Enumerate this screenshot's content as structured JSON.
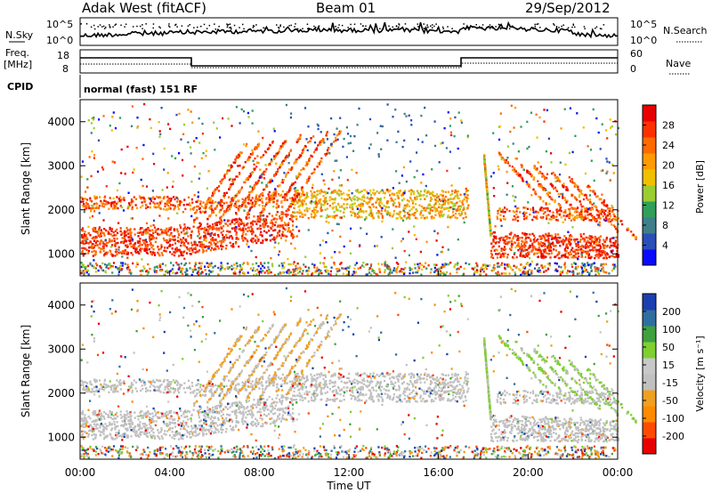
{
  "header": {
    "station": "Adak West (fitACF)",
    "beam": "Beam 01",
    "date": "29/Sep/2012"
  },
  "noise_panel": {
    "left_label": "N.Sky",
    "right_label": "N.Search",
    "ticks": [
      "10^5",
      "10^0"
    ]
  },
  "freq_panel": {
    "left_label": "Freq.",
    "left_unit": "[MHz]",
    "left_ticks": [
      "18",
      "8"
    ],
    "right_label": "Nave",
    "right_ticks": [
      "60",
      "0"
    ]
  },
  "cpid_panel": {
    "label": "CPID",
    "value": "normal (fast) 151 RF"
  },
  "chart_data": [
    {
      "type": "heatmap",
      "title": "",
      "ylabel": "Slant Range [km]",
      "xlabel": "",
      "ylim": [
        500,
        4500
      ],
      "yticks": [
        1000,
        2000,
        3000,
        4000
      ],
      "xlim": [
        "00:00",
        "24:00"
      ],
      "colorbar": {
        "label": "Power [dB]",
        "ticks": [
          "28",
          "24",
          "20",
          "16",
          "12",
          "8",
          "4"
        ],
        "colors": [
          "#0a0aff",
          "#2a4fb8",
          "#3f7f8a",
          "#2f9f5a",
          "#9acd32",
          "#f0c000",
          "#ff9a00",
          "#ff6a00",
          "#ff3000",
          "#e80000"
        ]
      },
      "series": [
        {
          "start_h": 0.0,
          "end_h": 4.9,
          "range_km": [
            900,
            1600
          ],
          "value": "28+"
        },
        {
          "start_h": 0.0,
          "end_h": 4.9,
          "range_km": [
            2000,
            2300
          ],
          "value": "24-28"
        },
        {
          "start_h": 5.0,
          "end_h": 9.5,
          "range_km": [
            1000,
            1600
          ],
          "value": "28+"
        },
        {
          "start_h": 9.5,
          "end_h": 17.0,
          "range_km": [
            1800,
            2500
          ],
          "value": "12-20"
        },
        {
          "start_h": 18.5,
          "end_h": 24.0,
          "range_km": [
            900,
            1400
          ],
          "value": "24-28"
        }
      ]
    },
    {
      "type": "heatmap",
      "title": "",
      "ylabel": "Slant Range [km]",
      "xlabel": "Time UT",
      "ylim": [
        500,
        4500
      ],
      "yticks": [
        1000,
        2000,
        3000,
        4000
      ],
      "xticks": [
        "00:00",
        "04:00",
        "08:00",
        "12:00",
        "16:00",
        "20:00",
        "00:00"
      ],
      "colorbar": {
        "label": "Velocity [m s⁻¹]",
        "ticks": [
          "200",
          "100",
          "50",
          "15",
          "-15",
          "-50",
          "-100",
          "-200"
        ],
        "colors": [
          "#e80000",
          "#ff4a00",
          "#ff8a00",
          "#f0a020",
          "#c0c0c0",
          "#c8c8c8",
          "#7ecf30",
          "#3fa03f",
          "#2f6fa0",
          "#1a3fb0"
        ]
      }
    }
  ]
}
